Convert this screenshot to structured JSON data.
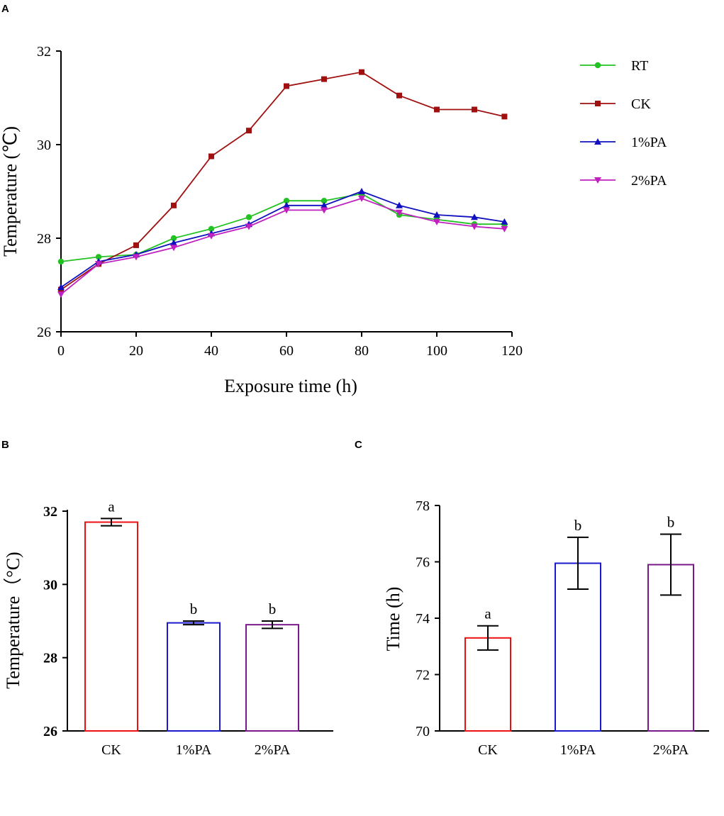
{
  "chart_data": [
    {
      "panel": "A",
      "type": "line",
      "title": "",
      "xlabel": "Exposure time (h)",
      "ylabel": "Temperature (℃)",
      "xlim": [
        0,
        120
      ],
      "ylim": [
        26,
        32
      ],
      "xticks": [
        0,
        20,
        40,
        60,
        80,
        100,
        120
      ],
      "yticks": [
        26,
        28,
        30,
        32
      ],
      "legend_position": "top-right",
      "series": [
        {
          "name": "RT",
          "color": "#22c222",
          "marker": "circle",
          "x": [
            0,
            10,
            20,
            30,
            40,
            50,
            60,
            70,
            80,
            90,
            100,
            110,
            118
          ],
          "values": [
            27.5,
            27.6,
            27.65,
            28.0,
            28.2,
            28.45,
            28.8,
            28.8,
            28.95,
            28.5,
            28.4,
            28.3,
            28.3
          ]
        },
        {
          "name": "CK",
          "color": "#a01010",
          "marker": "square",
          "x": [
            0,
            10,
            20,
            30,
            40,
            50,
            60,
            70,
            80,
            90,
            100,
            110,
            118
          ],
          "values": [
            26.9,
            27.45,
            27.85,
            28.7,
            29.75,
            30.3,
            31.25,
            31.4,
            31.55,
            31.05,
            30.75,
            30.75,
            30.6
          ]
        },
        {
          "name": "1%PA",
          "color": "#1010c0",
          "marker": "triangle-up",
          "x": [
            0,
            10,
            20,
            30,
            40,
            50,
            60,
            70,
            80,
            90,
            100,
            110,
            118
          ],
          "values": [
            26.95,
            27.5,
            27.65,
            27.9,
            28.1,
            28.3,
            28.7,
            28.7,
            29.0,
            28.7,
            28.5,
            28.45,
            28.35
          ]
        },
        {
          "name": "2%PA",
          "color": "#c020c0",
          "marker": "triangle-down",
          "x": [
            0,
            10,
            20,
            30,
            40,
            50,
            60,
            70,
            80,
            90,
            100,
            110,
            118
          ],
          "values": [
            26.8,
            27.45,
            27.6,
            27.8,
            28.05,
            28.25,
            28.6,
            28.6,
            28.85,
            28.55,
            28.35,
            28.25,
            28.2
          ]
        }
      ]
    },
    {
      "panel": "B",
      "type": "bar",
      "title": "",
      "xlabel": "",
      "ylabel": "Temperature（°C)",
      "ylim": [
        26,
        32
      ],
      "yticks": [
        26,
        28,
        30,
        32
      ],
      "categories": [
        "CK",
        "1%PA",
        "2%PA"
      ],
      "values": [
        31.7,
        28.95,
        28.9
      ],
      "errors": [
        0.1,
        0.05,
        0.1
      ],
      "colors": [
        "#ee1111",
        "#1a1acc",
        "#7a1a8a"
      ],
      "significance": [
        "a",
        "b",
        "b"
      ]
    },
    {
      "panel": "C",
      "type": "bar",
      "title": "",
      "xlabel": "",
      "ylabel": "Time (h)",
      "ylim": [
        70,
        78
      ],
      "yticks": [
        70,
        72,
        74,
        76,
        78
      ],
      "categories": [
        "CK",
        "1%PA",
        "2%PA"
      ],
      "values": [
        73.3,
        75.95,
        75.9
      ],
      "errors": [
        0.43,
        0.92,
        1.08
      ],
      "colors": [
        "#ee1111",
        "#1a1acc",
        "#7a1a8a"
      ],
      "significance": [
        "a",
        "b",
        "b"
      ]
    }
  ]
}
